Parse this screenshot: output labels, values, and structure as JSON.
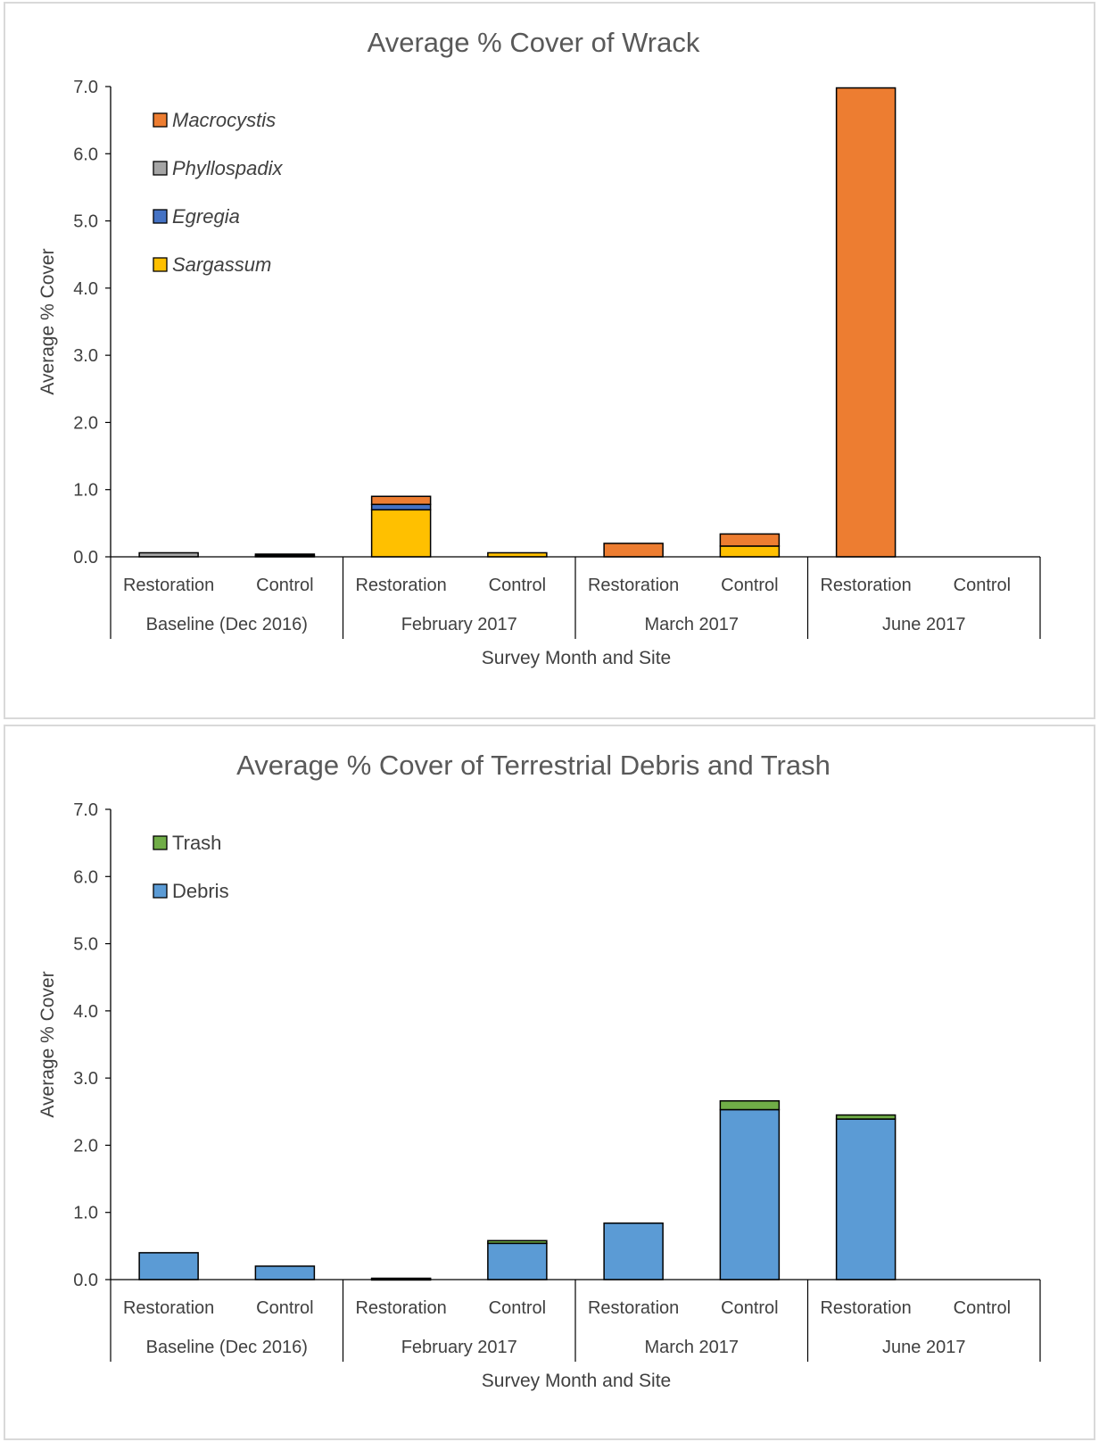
{
  "charts": [
    {
      "id": "wrack",
      "chart_data": {
        "type": "bar",
        "stacked": true,
        "title": "Average % Cover of Wrack",
        "xlabel": "Survey Month and Site",
        "ylabel": "Average % Cover",
        "ylim": [
          0,
          7
        ],
        "yticks": [
          "0.0",
          "1.0",
          "2.0",
          "3.0",
          "4.0",
          "5.0",
          "6.0",
          "7.0"
        ],
        "groups": [
          "Baseline (Dec 2016)",
          "February 2017",
          "March 2017",
          "June 2017"
        ],
        "categories": [
          "Restoration",
          "Control",
          "Restoration",
          "Control",
          "Restoration",
          "Control",
          "Restoration",
          "Control"
        ],
        "legend_position": "top-left",
        "legend_italic": true,
        "series": [
          {
            "name": "Sargassum",
            "color": "#FFC000",
            "values": [
              0,
              0,
              0.7,
              0.06,
              0,
              0.16,
              0,
              0
            ]
          },
          {
            "name": "Egregia",
            "color": "#4472C4",
            "values": [
              0,
              0,
              0.08,
              0,
              0,
              0,
              0,
              0
            ]
          },
          {
            "name": "Phyllospadix",
            "color": "#A5A5A5",
            "values": [
              0.06,
              0.02,
              0,
              0,
              0,
              0,
              0,
              0
            ]
          },
          {
            "name": "Macrocystis",
            "color": "#ED7D31",
            "values": [
              0,
              0.02,
              0.12,
              0,
              0.2,
              0.18,
              6.98,
              0
            ]
          }
        ],
        "legend_order": [
          "Macrocystis",
          "Phyllospadix",
          "Egregia",
          "Sargassum"
        ]
      }
    },
    {
      "id": "debris",
      "chart_data": {
        "type": "bar",
        "stacked": true,
        "title": "Average % Cover of Terrestrial Debris and Trash",
        "xlabel": "Survey Month and Site",
        "ylabel": "Average % Cover",
        "ylim": [
          0,
          7
        ],
        "yticks": [
          "0.0",
          "1.0",
          "2.0",
          "3.0",
          "4.0",
          "5.0",
          "6.0",
          "7.0"
        ],
        "groups": [
          "Baseline (Dec 2016)",
          "February 2017",
          "March 2017",
          "June 2017"
        ],
        "categories": [
          "Restoration",
          "Control",
          "Restoration",
          "Control",
          "Restoration",
          "Control",
          "Restoration",
          "Control"
        ],
        "legend_position": "top-left",
        "legend_italic": false,
        "series": [
          {
            "name": "Debris",
            "color": "#5B9BD5",
            "values": [
              0.4,
              0.2,
              0.01,
              0.54,
              0.84,
              2.53,
              2.39,
              0
            ]
          },
          {
            "name": "Trash",
            "color": "#70AD47",
            "values": [
              0,
              0,
              0.01,
              0.04,
              0,
              0.13,
              0.06,
              0
            ]
          }
        ],
        "legend_order": [
          "Trash",
          "Debris"
        ]
      }
    }
  ]
}
